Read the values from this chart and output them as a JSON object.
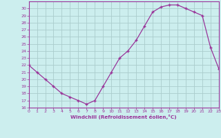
{
  "x": [
    0,
    1,
    2,
    3,
    4,
    5,
    6,
    7,
    8,
    9,
    10,
    11,
    12,
    13,
    14,
    15,
    16,
    17,
    18,
    19,
    20,
    21,
    22,
    23
  ],
  "y": [
    22,
    21,
    20,
    19,
    18,
    17.5,
    17,
    16.5,
    17,
    19,
    21,
    23,
    24,
    25.5,
    27.5,
    29.5,
    30.2,
    30.5,
    30.5,
    30,
    29.5,
    29,
    24.5,
    21.5
  ],
  "line_color": "#993399",
  "marker": "+",
  "marker_color": "#993399",
  "bg_color": "#cceeee",
  "grid_color": "#aacccc",
  "xlabel": "Windchill (Refroidissement éolien,°C)",
  "xlabel_color": "#993399",
  "tick_color": "#993399",
  "ylim": [
    16,
    31
  ],
  "yticks": [
    16,
    17,
    18,
    19,
    20,
    21,
    22,
    23,
    24,
    25,
    26,
    27,
    28,
    29,
    30
  ],
  "xticks": [
    0,
    1,
    2,
    3,
    4,
    5,
    6,
    7,
    8,
    9,
    10,
    11,
    12,
    13,
    14,
    15,
    16,
    17,
    18,
    19,
    20,
    21,
    22,
    23
  ],
  "spine_color": "#993399",
  "figsize": [
    3.2,
    2.0
  ],
  "dpi": 100
}
